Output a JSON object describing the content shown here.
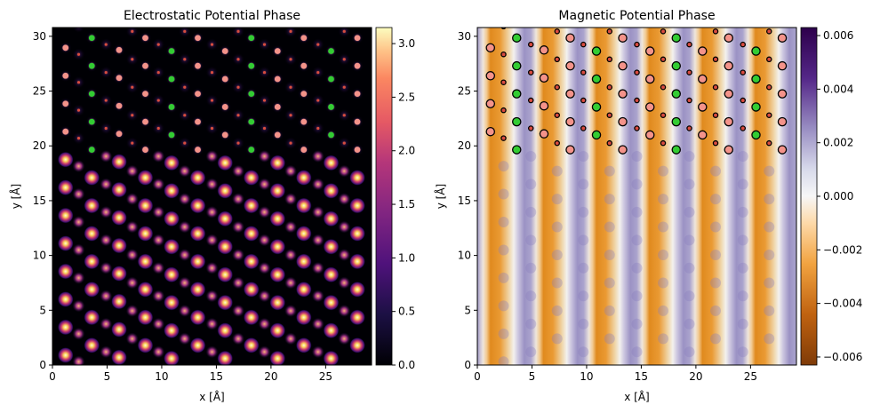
{
  "chart_data": [
    {
      "type": "heatmap",
      "title": "Electrostatic Potential Phase",
      "xlabel": "x [Å]",
      "ylabel": "y [Å]",
      "xlim": [
        0,
        29.2
      ],
      "ylim": [
        0,
        30.8
      ],
      "xticks": [
        0,
        5,
        10,
        15,
        20,
        25
      ],
      "yticks": [
        0,
        5,
        10,
        15,
        20,
        25,
        30
      ],
      "colormap": "magma",
      "colorbar": {
        "range": [
          0,
          3.15
        ],
        "ticks": [
          "0.0",
          "0.5",
          "1.0",
          "1.5",
          "2.0",
          "2.5",
          "3.0"
        ],
        "tick_values": [
          0,
          0.5,
          1.0,
          1.5,
          2.0,
          2.5,
          3.0
        ]
      },
      "lattice": {
        "columns_x": [
          1.2,
          2.4,
          3.6,
          4.9,
          6.1,
          7.3,
          8.5,
          9.7,
          10.9,
          12.1,
          13.3,
          14.6,
          15.8,
          17.0,
          18.2,
          19.4,
          20.6,
          21.8,
          23.0,
          24.3,
          25.5,
          26.7,
          27.9
        ],
        "column_y0": [
          0.9,
          0.3,
          1.8,
          1.2,
          0.7,
          2.4,
          1.8,
          1.2,
          0.6,
          2.4,
          1.8,
          1.2,
          0.6,
          2.4,
          1.8,
          1.2,
          0.6,
          2.4,
          1.8,
          1.2,
          0.6,
          2.4,
          1.8
        ],
        "y_spacing": 2.55,
        "interface_y": 19.5
      },
      "marker_colors": {
        "large": "#f4938a",
        "green": "#33cc33",
        "small": "#d94c40"
      }
    },
    {
      "type": "heatmap",
      "title": "Magnetic Potential Phase",
      "xlabel": "x [Å]",
      "ylabel": "y [Å]",
      "xlim": [
        0,
        29.2
      ],
      "ylim": [
        0,
        30.8
      ],
      "xticks": [
        0,
        5,
        10,
        15,
        20,
        25
      ],
      "yticks": [
        0,
        5,
        10,
        15,
        20,
        25,
        30
      ],
      "colormap": "PuOr",
      "colorbar": {
        "range": [
          -0.0063,
          0.0063
        ],
        "ticks": [
          "−0.006",
          "−0.004",
          "−0.002",
          "0.000",
          "0.002",
          "0.004",
          "0.006"
        ],
        "tick_values": [
          -0.006,
          -0.004,
          -0.002,
          0,
          0.002,
          0.004,
          0.006
        ]
      },
      "stripe_period": 4.85,
      "stripe_phase": 1.2
    }
  ]
}
